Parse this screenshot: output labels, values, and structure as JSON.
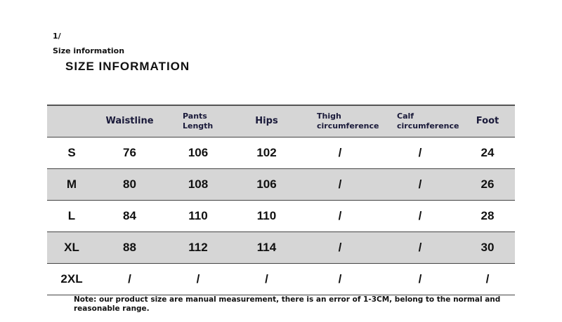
{
  "header": {
    "number": "1/",
    "subtitle": "Size information",
    "title": "SIZE INFORMATION"
  },
  "table": {
    "columns": [
      "",
      "Waistline",
      "Pants Length",
      "Hips",
      "Thigh circumference",
      "Calf circumference",
      "Foot"
    ],
    "rows": [
      [
        "S",
        "76",
        "106",
        "102",
        "/",
        "/",
        "24"
      ],
      [
        "M",
        "80",
        "108",
        "106",
        "/",
        "/",
        "26"
      ],
      [
        "L",
        "84",
        "110",
        "110",
        "/",
        "/",
        "28"
      ],
      [
        "XL",
        "88",
        "112",
        "114",
        "/",
        "/",
        "30"
      ],
      [
        "2XL",
        "/",
        "/",
        "/",
        "/",
        "/",
        "/"
      ]
    ]
  },
  "note": "Note: our product size are manual measurement, there is an error of 1-3CM, belong to the normal and reasonable range.",
  "colors": {
    "header_bg": "#d6d6d6",
    "stripe_bg": "#d6d6d6"
  }
}
